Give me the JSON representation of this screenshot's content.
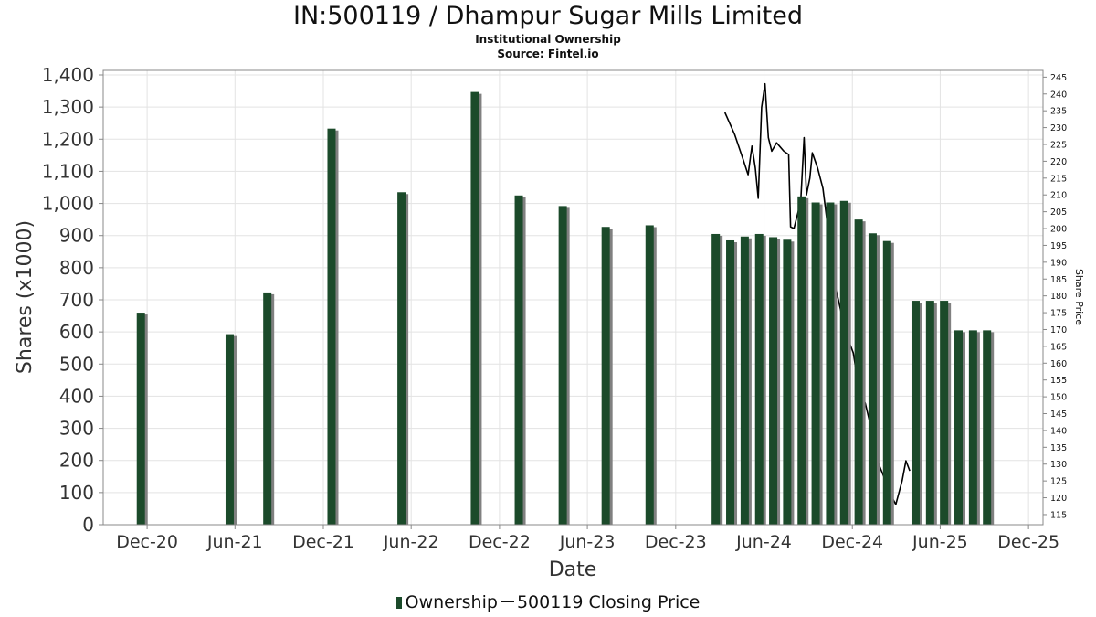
{
  "chart_data": {
    "type": "bar",
    "title": "IN:500119 / Dhampur Sugar Mills Limited",
    "subtitle_lines": [
      "Institutional Ownership",
      "Source: Fintel.io"
    ],
    "xlabel": "Date",
    "ylabel": "Shares (x1000)",
    "y2label": "Share Price",
    "ylim": [
      0,
      1400
    ],
    "y2lim": [
      112,
      247
    ],
    "xlim": [
      "2020-09-01",
      "2025-12-31"
    ],
    "grid": true,
    "legend_position": "bottom",
    "yticks": [
      "0",
      "100",
      "200",
      "300",
      "400",
      "500",
      "600",
      "700",
      "800",
      "900",
      "1,000",
      "1,100",
      "1,200",
      "1,300",
      "1,400"
    ],
    "y2ticks": [
      115,
      120,
      125,
      130,
      135,
      140,
      145,
      150,
      155,
      160,
      165,
      170,
      175,
      180,
      185,
      190,
      195,
      200,
      205,
      210,
      215,
      220,
      225,
      230,
      235,
      240,
      245
    ],
    "xticks": [
      {
        "label": "Dec-20",
        "date": "2020-12-01"
      },
      {
        "label": "Jun-21",
        "date": "2021-06-01"
      },
      {
        "label": "Dec-21",
        "date": "2021-12-01"
      },
      {
        "label": "Jun-22",
        "date": "2022-06-01"
      },
      {
        "label": "Dec-22",
        "date": "2022-12-01"
      },
      {
        "label": "Jun-23",
        "date": "2023-06-01"
      },
      {
        "label": "Dec-23",
        "date": "2023-12-01"
      },
      {
        "label": "Jun-24",
        "date": "2024-06-01"
      },
      {
        "label": "Dec-24",
        "date": "2024-12-01"
      },
      {
        "label": "Jun-25",
        "date": "2025-06-01"
      },
      {
        "label": "Dec-25",
        "date": "2025-12-01"
      }
    ],
    "series": [
      {
        "name": "Ownership",
        "color": "#1b4a2a",
        "shadow_color": "#808080",
        "points": [
          {
            "x": "2020-11-18",
            "y": 660
          },
          {
            "x": "2021-05-21",
            "y": 593
          },
          {
            "x": "2021-08-07",
            "y": 723
          },
          {
            "x": "2021-12-18",
            "y": 1233
          },
          {
            "x": "2022-05-12",
            "y": 1035
          },
          {
            "x": "2022-10-11",
            "y": 1347
          },
          {
            "x": "2023-01-10",
            "y": 1025
          },
          {
            "x": "2023-04-11",
            "y": 992
          },
          {
            "x": "2023-07-09",
            "y": 927
          },
          {
            "x": "2023-10-08",
            "y": 932
          },
          {
            "x": "2024-02-22",
            "y": 905
          },
          {
            "x": "2024-03-23",
            "y": 885
          },
          {
            "x": "2024-04-22",
            "y": 897
          },
          {
            "x": "2024-05-22",
            "y": 905
          },
          {
            "x": "2024-06-20",
            "y": 895
          },
          {
            "x": "2024-07-19",
            "y": 887
          },
          {
            "x": "2024-08-18",
            "y": 1022
          },
          {
            "x": "2024-09-16",
            "y": 1003
          },
          {
            "x": "2024-10-16",
            "y": 1003
          },
          {
            "x": "2024-11-14",
            "y": 1008
          },
          {
            "x": "2024-12-14",
            "y": 950
          },
          {
            "x": "2025-01-12",
            "y": 907
          },
          {
            "x": "2025-02-11",
            "y": 883
          },
          {
            "x": "2025-04-11",
            "y": 697
          },
          {
            "x": "2025-05-11",
            "y": 697
          },
          {
            "x": "2025-06-09",
            "y": 697
          },
          {
            "x": "2025-07-09",
            "y": 605
          },
          {
            "x": "2025-08-08",
            "y": 605
          },
          {
            "x": "2025-09-06",
            "y": 605
          }
        ]
      },
      {
        "name": "500119 Closing Price",
        "color": "#000000",
        "axis": "right",
        "points": [
          {
            "x": "2024-03-12",
            "y": 234.5
          },
          {
            "x": "2024-04-01",
            "y": 228
          },
          {
            "x": "2024-04-20",
            "y": 220
          },
          {
            "x": "2024-04-29",
            "y": 216
          },
          {
            "x": "2024-05-07",
            "y": 224.5
          },
          {
            "x": "2024-05-14",
            "y": 218
          },
          {
            "x": "2024-05-20",
            "y": 209
          },
          {
            "x": "2024-05-27",
            "y": 236
          },
          {
            "x": "2024-06-03",
            "y": 243
          },
          {
            "x": "2024-06-10",
            "y": 227
          },
          {
            "x": "2024-06-17",
            "y": 223
          },
          {
            "x": "2024-06-27",
            "y": 225.5
          },
          {
            "x": "2024-07-12",
            "y": 223
          },
          {
            "x": "2024-07-22",
            "y": 222
          },
          {
            "x": "2024-07-26",
            "y": 200.5
          },
          {
            "x": "2024-08-02",
            "y": 200
          },
          {
            "x": "2024-08-16",
            "y": 208
          },
          {
            "x": "2024-08-23",
            "y": 227
          },
          {
            "x": "2024-08-28",
            "y": 210
          },
          {
            "x": "2024-09-04",
            "y": 215
          },
          {
            "x": "2024-09-09",
            "y": 222.5
          },
          {
            "x": "2024-09-20",
            "y": 218
          },
          {
            "x": "2024-10-01",
            "y": 212
          },
          {
            "x": "2024-10-15",
            "y": 196
          },
          {
            "x": "2024-10-28",
            "y": 182
          },
          {
            "x": "2024-11-08",
            "y": 175
          },
          {
            "x": "2024-11-20",
            "y": 168
          },
          {
            "x": "2024-12-03",
            "y": 163
          },
          {
            "x": "2024-12-15",
            "y": 152
          },
          {
            "x": "2024-12-28",
            "y": 148
          },
          {
            "x": "2025-01-10",
            "y": 140
          },
          {
            "x": "2025-01-22",
            "y": 131
          },
          {
            "x": "2025-02-05",
            "y": 126
          },
          {
            "x": "2025-02-18",
            "y": 121
          },
          {
            "x": "2025-03-01",
            "y": 118
          },
          {
            "x": "2025-03-14",
            "y": 125
          },
          {
            "x": "2025-03-22",
            "y": 131
          },
          {
            "x": "2025-03-30",
            "y": 128
          }
        ]
      }
    ]
  },
  "legend": {
    "ownership_label": "Ownership",
    "price_label": "500119 Closing Price"
  }
}
